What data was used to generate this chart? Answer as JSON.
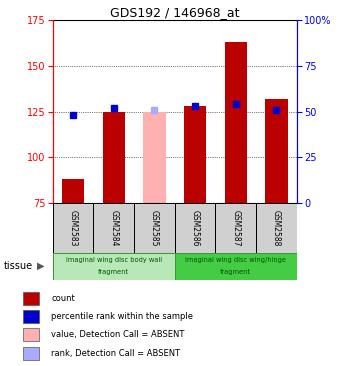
{
  "title": "GDS192 / 146968_at",
  "samples": [
    "GSM2583",
    "GSM2584",
    "GSM2585",
    "GSM2586",
    "GSM2587",
    "GSM2588"
  ],
  "bar_values": [
    88,
    125,
    125,
    128,
    163,
    132
  ],
  "bar_absent": [
    false,
    false,
    true,
    false,
    false,
    false
  ],
  "dot_values": [
    48,
    52,
    51,
    53,
    54,
    51
  ],
  "dot_absent": [
    false,
    false,
    true,
    false,
    false,
    false
  ],
  "ylim_left": [
    75,
    175
  ],
  "ylim_right": [
    0,
    100
  ],
  "yticks_left": [
    75,
    100,
    125,
    150,
    175
  ],
  "yticks_right": [
    0,
    25,
    50,
    75,
    100
  ],
  "tissue_groups": [
    {
      "label": "imaginal wing disc body wall",
      "label2": "fragment",
      "samples_count": 3,
      "color": "#b8e8b8"
    },
    {
      "label": "imaginal wing disc wing/hinge",
      "label2": "fragment",
      "samples_count": 3,
      "color": "#44cc44"
    }
  ],
  "tissue_label": "tissue",
  "bar_color_normal": "#bb0000",
  "bar_color_absent": "#ffb0b0",
  "dot_color_normal": "#0000cc",
  "dot_color_absent": "#aaaaff",
  "bar_width": 0.55,
  "legend_items": [
    {
      "label": "count",
      "color": "#bb0000"
    },
    {
      "label": "percentile rank within the sample",
      "color": "#0000cc"
    },
    {
      "label": "value, Detection Call = ABSENT",
      "color": "#ffb0b0"
    },
    {
      "label": "rank, Detection Call = ABSENT",
      "color": "#aaaaff"
    }
  ]
}
